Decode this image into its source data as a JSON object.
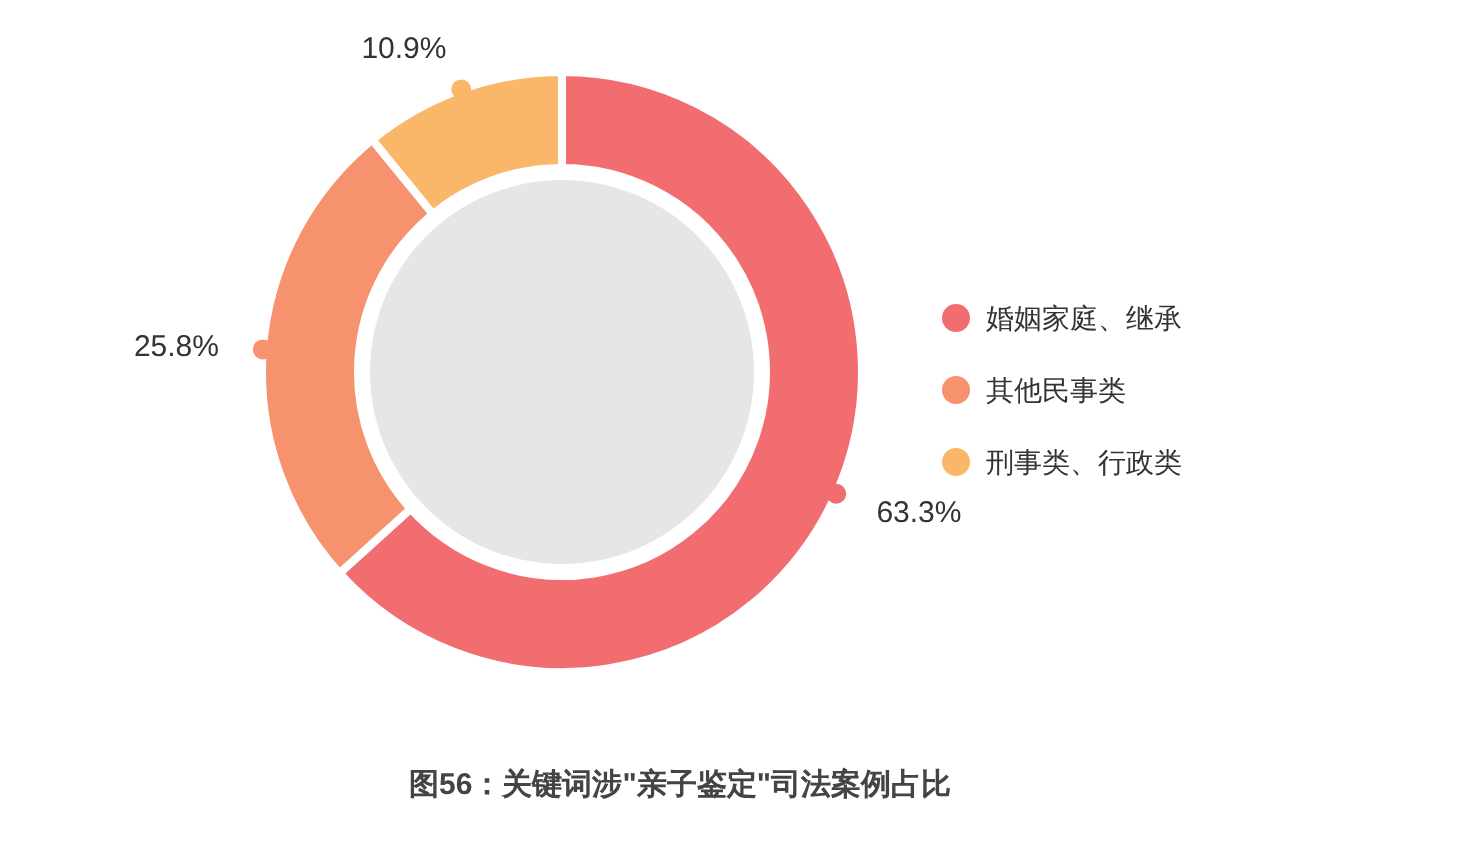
{
  "chart_data": {
    "type": "donut",
    "title": "图56：关键词涉\"亲子鉴定\"司法案例占比",
    "categories": [
      "婚姻家庭、继承",
      "其他民事类",
      "刑事类、行政类"
    ],
    "values": [
      63.3,
      25.8,
      10.9
    ],
    "colors": [
      "#f16d70",
      "#f6926d",
      "#fbb769"
    ],
    "value_labels": [
      "63.3%",
      "25.8%",
      "10.9%"
    ],
    "legend": "right"
  }
}
